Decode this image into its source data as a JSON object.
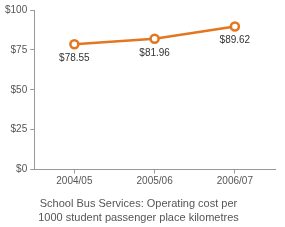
{
  "chart_data": {
    "type": "line",
    "title": "School Bus Services: Operating cost per 1000 student passenger place kilometres",
    "categories": [
      "2004/05",
      "2005/06",
      "2006/07"
    ],
    "values": [
      78.55,
      81.96,
      89.62
    ],
    "value_labels": [
      "$78.55",
      "$81.96",
      "$89.62"
    ],
    "color": "#e4761f",
    "marker": "circle",
    "line_style": "solid",
    "data_labels": true,
    "grid": false,
    "ylim": [
      0,
      100
    ],
    "yticks": [
      {
        "value": 0,
        "label": "$0"
      },
      {
        "value": 25,
        "label": "$25"
      },
      {
        "value": 50,
        "label": "$50"
      },
      {
        "value": 75,
        "label": "$75"
      },
      {
        "value": 100,
        "label": "$100"
      }
    ]
  }
}
